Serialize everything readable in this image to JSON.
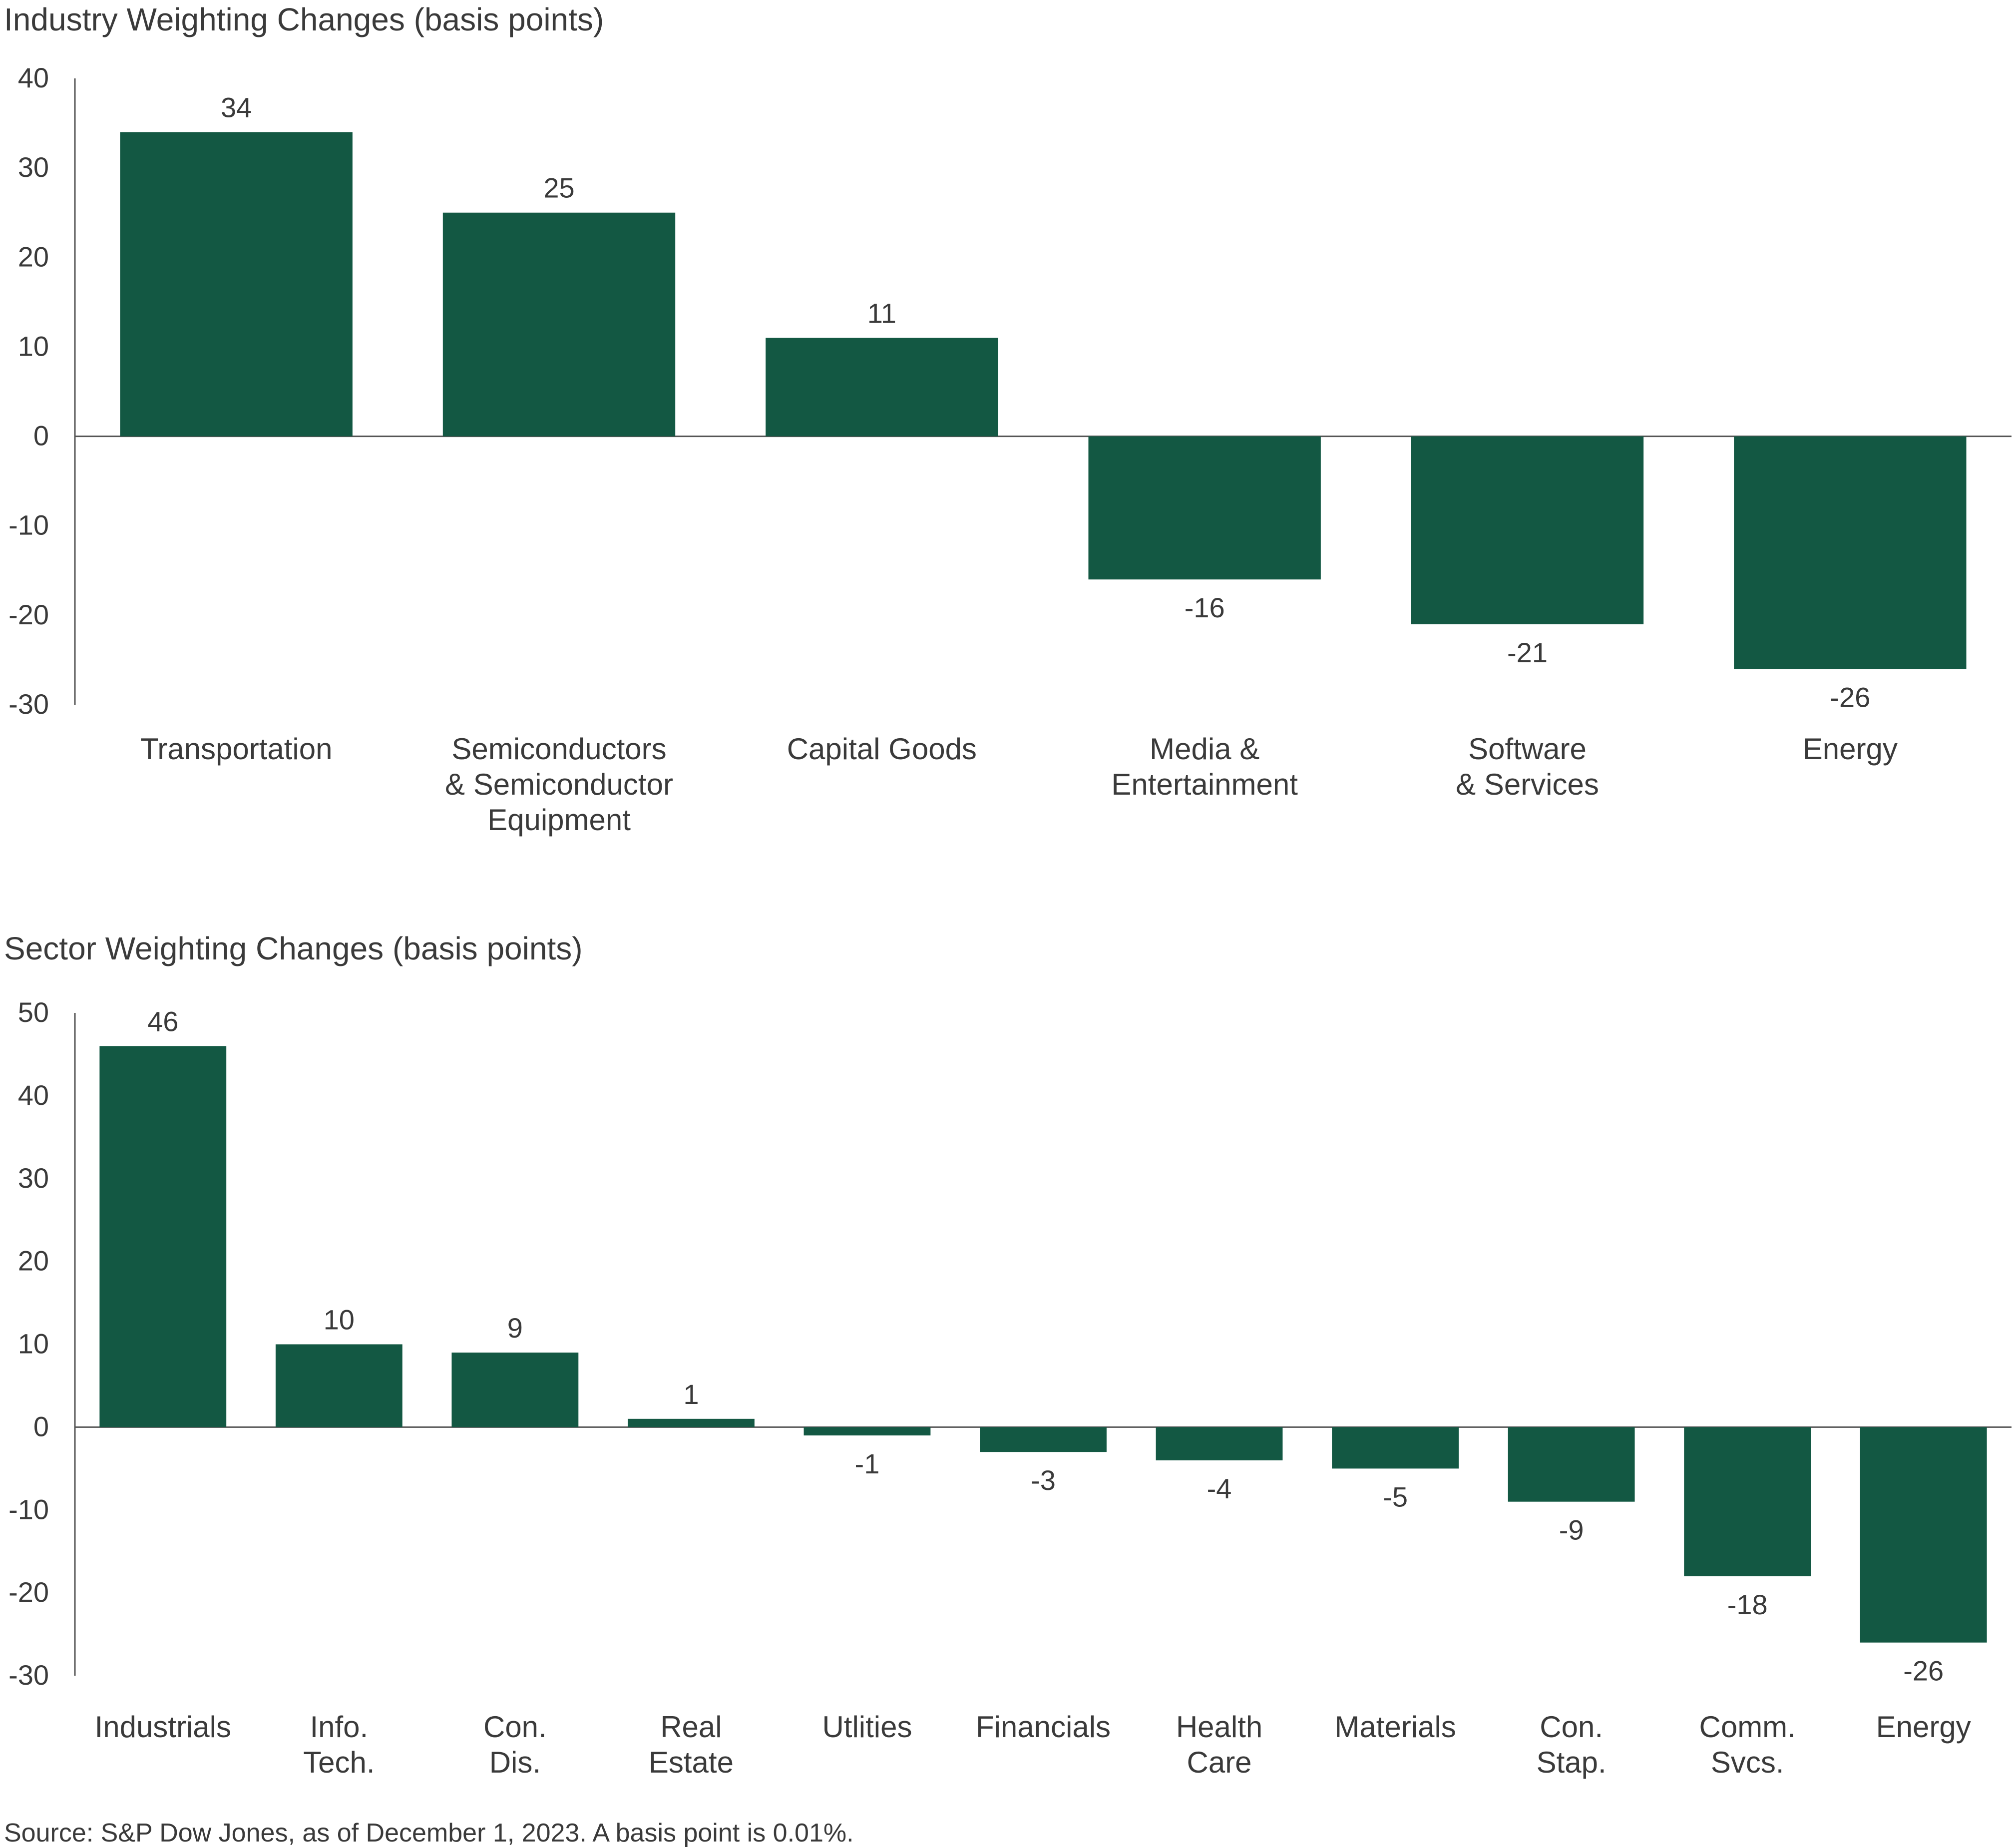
{
  "colors": {
    "bar": "#135843",
    "axis": "#555555",
    "text": "#3a3a3a"
  },
  "chart_data": [
    {
      "type": "bar",
      "title": "Industry Weighting Changes (basis points)",
      "categories": [
        [
          "Transportation"
        ],
        [
          "Semiconductors",
          "& Semiconductor",
          "Equipment"
        ],
        [
          "Capital Goods"
        ],
        [
          "Media &",
          "Entertainment"
        ],
        [
          "Software",
          "& Services"
        ],
        [
          "Energy"
        ]
      ],
      "values": [
        34,
        25,
        11,
        -16,
        -21,
        -26
      ],
      "data_labels": [
        "34",
        "25",
        "11",
        "-16",
        "-21",
        "-26"
      ],
      "yticks": [
        40,
        30,
        20,
        10,
        0,
        -10,
        -20,
        -30
      ],
      "ylim": [
        -30,
        40
      ],
      "grid": false,
      "legend": "none"
    },
    {
      "type": "bar",
      "title": "Sector Weighting Changes (basis points)",
      "categories": [
        [
          "Industrials"
        ],
        [
          "Info.",
          "Tech."
        ],
        [
          "Con.",
          "Dis."
        ],
        [
          "Real",
          "Estate"
        ],
        [
          "Utlities"
        ],
        [
          "Financials"
        ],
        [
          "Health",
          "Care"
        ],
        [
          "Materials"
        ],
        [
          "Con.",
          "Stap."
        ],
        [
          "Comm.",
          "Svcs."
        ],
        [
          "Energy"
        ]
      ],
      "values": [
        46,
        10,
        9,
        1,
        -1,
        -3,
        -4,
        -5,
        -9,
        -18,
        -26
      ],
      "data_labels": [
        "46",
        "10",
        "9",
        "1",
        "-1",
        "-3",
        "-4",
        "-5",
        "-9",
        "-18",
        "-26"
      ],
      "yticks": [
        50,
        40,
        30,
        20,
        10,
        0,
        -10,
        -20,
        -30
      ],
      "ylim": [
        -30,
        50
      ],
      "grid": false,
      "legend": "none"
    }
  ],
  "source": "Source: S&P Dow Jones, as of December 1, 2023. A basis point is 0.01%."
}
